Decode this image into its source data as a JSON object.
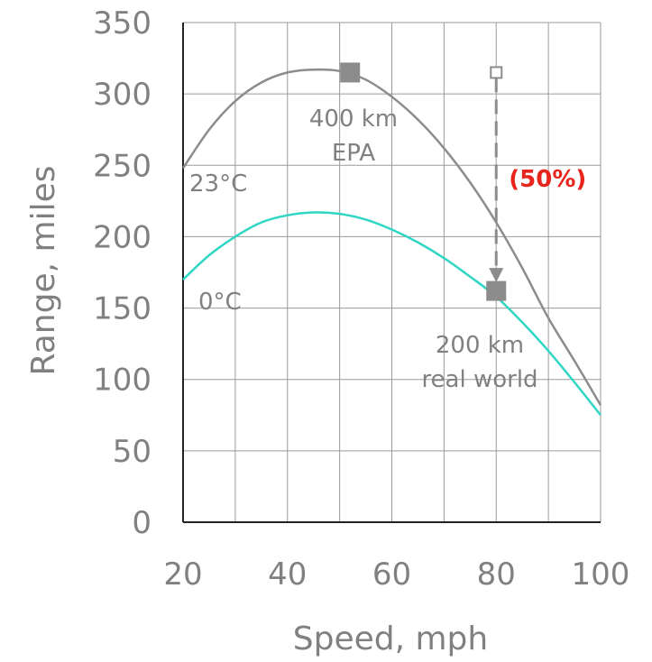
{
  "chart_data": {
    "type": "line",
    "xlabel": "Speed, mph",
    "ylabel": "Range, miles",
    "xlim": [
      20,
      100
    ],
    "ylim": [
      0,
      350
    ],
    "x_ticks": [
      20,
      40,
      60,
      80,
      100
    ],
    "y_ticks": [
      0,
      50,
      100,
      150,
      200,
      250,
      300,
      350
    ],
    "grid": true,
    "series": [
      {
        "name": "23°C",
        "color": "#8c8c8c",
        "x": [
          20,
          25,
          30,
          35,
          40,
          45,
          50,
          55,
          60,
          65,
          70,
          75,
          80,
          85,
          90,
          95,
          100
        ],
        "y": [
          248,
          275,
          295,
          308,
          315,
          317,
          316,
          310,
          298,
          282,
          262,
          238,
          210,
          178,
          143,
          113,
          82
        ]
      },
      {
        "name": "0°C",
        "color": "#2fd6c4",
        "x": [
          20,
          25,
          30,
          35,
          40,
          45,
          50,
          55,
          60,
          65,
          70,
          75,
          80,
          85,
          90,
          95,
          100
        ],
        "y": [
          170,
          187,
          200,
          210,
          215,
          217,
          216,
          212,
          205,
          196,
          185,
          172,
          158,
          140,
          120,
          98,
          75
        ]
      }
    ],
    "markers": [
      {
        "label_line1": "400 km",
        "label_line2": "EPA",
        "x": 52,
        "y": 315
      },
      {
        "label_line1": "200 km",
        "label_line2": "real world",
        "x": 80,
        "y": 162
      }
    ],
    "arrow": {
      "x": 80,
      "y_from": 315,
      "y_to": 168,
      "label": "(50%)",
      "label_color": "#e8251c"
    },
    "grid_color": "#9a9a9a",
    "marker_color": "#8c8c8c"
  }
}
